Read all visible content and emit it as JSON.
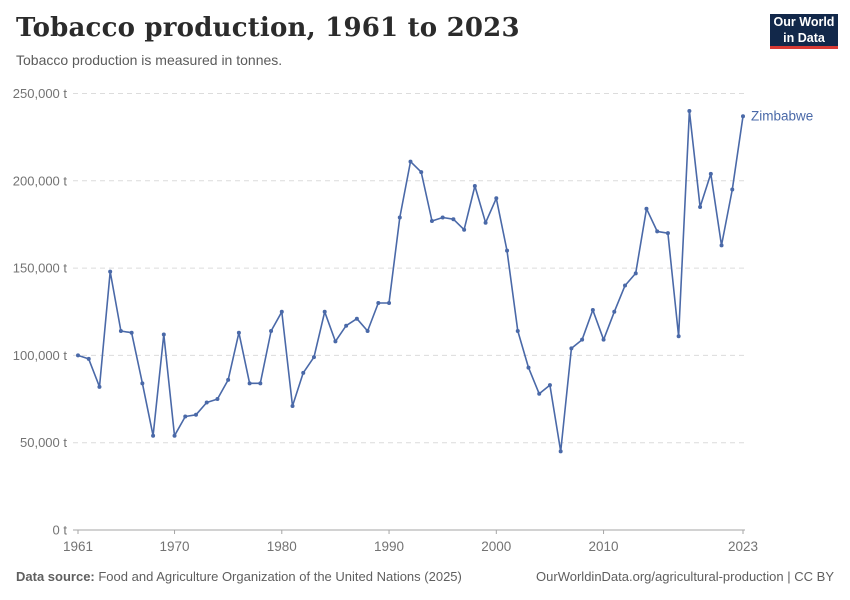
{
  "header": {
    "title": "Tobacco production, 1961 to 2023",
    "subtitle": "Tobacco production is measured in tonnes."
  },
  "logo": {
    "line1": "Our World",
    "line2": "in Data"
  },
  "footer": {
    "source_label": "Data source:",
    "source_text": " Food and Agriculture Organization of the United Nations (2025)",
    "link_text": "OurWorldinData.org/agricultural-production",
    "separator": " | ",
    "license_text": "CC BY"
  },
  "colors": {
    "line": "#4A69A8",
    "grid": "#dcdcdc",
    "axis": "#a5a5a5",
    "tick_label": "#737373",
    "title": "#2b2b2b",
    "subtitle": "#5b5b5b",
    "logo_bg": "#12284a",
    "logo_stripe": "#d93a34"
  },
  "chart_data": {
    "type": "line",
    "title": "Tobacco production, 1961 to 2023",
    "xlabel": "",
    "ylabel": "tonnes",
    "ylim": [
      0,
      250000
    ],
    "xlim": [
      1961,
      2023
    ],
    "grid": "horizontal-dashed",
    "legend": "inline-end-label",
    "yticks": [
      {
        "value": 0,
        "label": "0 t"
      },
      {
        "value": 50000,
        "label": "50,000 t"
      },
      {
        "value": 100000,
        "label": "100,000 t"
      },
      {
        "value": 150000,
        "label": "150,000 t"
      },
      {
        "value": 200000,
        "label": "200,000 t"
      },
      {
        "value": 250000,
        "label": "250,000 t"
      }
    ],
    "xticks": [
      {
        "value": 1961,
        "label": "1961"
      },
      {
        "value": 1970,
        "label": "1970"
      },
      {
        "value": 1980,
        "label": "1980"
      },
      {
        "value": 1990,
        "label": "1990"
      },
      {
        "value": 2000,
        "label": "2000"
      },
      {
        "value": 2010,
        "label": "2010"
      },
      {
        "value": 2023,
        "label": "2023"
      }
    ],
    "series": [
      {
        "name": "Zimbabwe",
        "x": [
          1961,
          1962,
          1963,
          1964,
          1965,
          1966,
          1967,
          1968,
          1969,
          1970,
          1971,
          1972,
          1973,
          1974,
          1975,
          1976,
          1977,
          1978,
          1979,
          1980,
          1981,
          1982,
          1983,
          1984,
          1985,
          1986,
          1987,
          1988,
          1989,
          1990,
          1991,
          1992,
          1993,
          1994,
          1995,
          1996,
          1997,
          1998,
          1999,
          2000,
          2001,
          2002,
          2003,
          2004,
          2005,
          2006,
          2007,
          2008,
          2009,
          2010,
          2011,
          2012,
          2013,
          2014,
          2015,
          2016,
          2017,
          2018,
          2019,
          2020,
          2021,
          2022,
          2023
        ],
        "values": [
          100000,
          98000,
          82000,
          148000,
          114000,
          113000,
          84000,
          54000,
          112000,
          54000,
          65000,
          66000,
          73000,
          75000,
          86000,
          113000,
          84000,
          84000,
          114000,
          125000,
          71000,
          90000,
          99000,
          125000,
          108000,
          117000,
          121000,
          114000,
          130000,
          130000,
          179000,
          211000,
          205000,
          177000,
          179000,
          178000,
          172000,
          197000,
          176000,
          190000,
          160000,
          114000,
          93000,
          78000,
          83000,
          45000,
          104000,
          109000,
          126000,
          109000,
          125000,
          140000,
          147000,
          184000,
          171000,
          170000,
          111000,
          240000,
          185000,
          204000,
          163000,
          195000,
          237000
        ]
      }
    ]
  }
}
